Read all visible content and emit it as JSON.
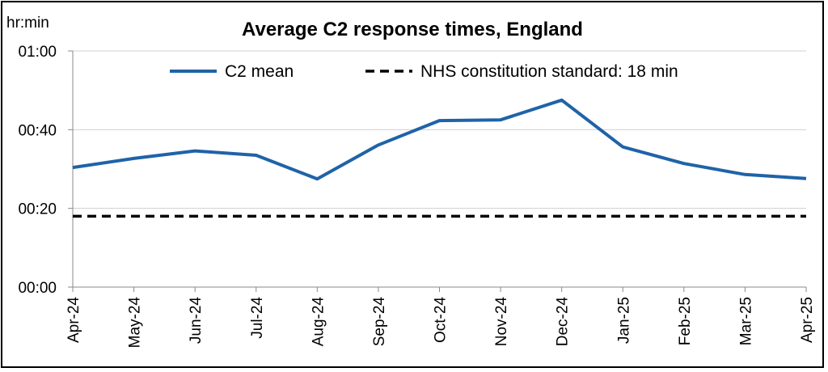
{
  "chart_data": {
    "type": "line",
    "title": "Average C2 response times, England",
    "ylabel": "hr:min",
    "xlabel": "",
    "categories": [
      "Apr-24",
      "May-24",
      "Jun-24",
      "Jul-24",
      "Aug-24",
      "Sep-24",
      "Oct-24",
      "Nov-24",
      "Dec-24",
      "Jan-25",
      "Feb-25",
      "Mar-25",
      "Apr-25"
    ],
    "ylim": [
      0,
      60
    ],
    "yticks": [
      0,
      20,
      40,
      60
    ],
    "ytick_labels": [
      "00:00",
      "00:20",
      "00:40",
      "01:00"
    ],
    "grid": true,
    "legend_position": "top",
    "series": [
      {
        "name": "C2 mean",
        "style": "solid",
        "color": "#1f63a8",
        "values": [
          30.4,
          32.7,
          34.6,
          33.5,
          27.5,
          36.1,
          42.3,
          42.5,
          47.5,
          35.6,
          31.4,
          28.6,
          27.6
        ]
      },
      {
        "name": "NHS constitution standard: 18 min",
        "style": "dashed",
        "color": "#000000",
        "values": [
          18,
          18,
          18,
          18,
          18,
          18,
          18,
          18,
          18,
          18,
          18,
          18,
          18
        ]
      }
    ]
  }
}
